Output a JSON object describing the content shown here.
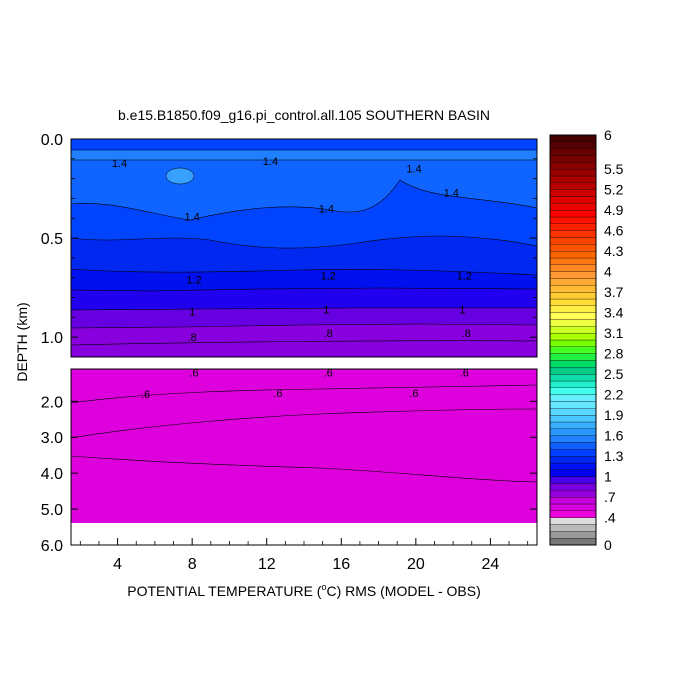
{
  "chart_data": {
    "type": "heatmap",
    "title": "b.e15.B1850.f09_g16.pi_control.all.105 SOUTHERN BASIN",
    "xlabel": "POTENTIAL TEMPERATURE (",
    "xlabel_sup": "o",
    "xlabel_end": "C) RMS (MODEL - OBS)",
    "ylabel": "DEPTH (km)",
    "x_ticks": [
      "4",
      "8",
      "12",
      "16",
      "20",
      "24"
    ],
    "x_tick_values": [
      4,
      8,
      12,
      16,
      20,
      24
    ],
    "xlim": [
      1.5,
      26.5
    ],
    "upper_panel": {
      "ylim": [
        0.0,
        1.1
      ],
      "y_ticks": [
        "0.0",
        "0.5",
        "1.0"
      ],
      "y_tick_values": [
        0.0,
        0.5,
        1.0
      ],
      "contour_labels": [
        {
          "text": "1.4",
          "x": 4.1,
          "y": 0.12
        },
        {
          "text": "1.4",
          "x": 12.2,
          "y": 0.11
        },
        {
          "text": "1.4",
          "x": 19.9,
          "y": 0.15
        },
        {
          "text": "1.4",
          "x": 21.9,
          "y": 0.27
        },
        {
          "text": "1.4",
          "x": 8.0,
          "y": 0.39
        },
        {
          "text": "1.4",
          "x": 15.2,
          "y": 0.35
        },
        {
          "text": "1.2",
          "x": 8.1,
          "y": 0.71
        },
        {
          "text": "1.2",
          "x": 15.3,
          "y": 0.69
        },
        {
          "text": "1.2",
          "x": 22.6,
          "y": 0.69
        },
        {
          "text": "1",
          "x": 8.0,
          "y": 0.87
        },
        {
          "text": "1",
          "x": 15.2,
          "y": 0.86
        },
        {
          "text": "1",
          "x": 22.5,
          "y": 0.86
        },
        {
          "text": ".8",
          "x": 8.0,
          "y": 1.0
        },
        {
          "text": ".8",
          "x": 15.3,
          "y": 0.98
        },
        {
          "text": ".8",
          "x": 22.7,
          "y": 0.98
        }
      ]
    },
    "lower_panel": {
      "ylim": [
        1.1,
        6.0
      ],
      "data_bottom": 5.35,
      "y_ticks": [
        "2.0",
        "3.0",
        "4.0",
        "5.0",
        "6.0"
      ],
      "y_tick_values": [
        2.0,
        3.0,
        4.0,
        5.0,
        6.0
      ],
      "contour_labels": [
        {
          "text": ".6",
          "x": 8.1,
          "y": 1.2
        },
        {
          "text": ".6",
          "x": 15.3,
          "y": 1.2
        },
        {
          "text": ".6",
          "x": 22.6,
          "y": 1.2
        },
        {
          "text": ".6",
          "x": 5.5,
          "y": 1.8
        },
        {
          "text": ".6",
          "x": 12.6,
          "y": 1.77
        },
        {
          "text": ".6",
          "x": 19.9,
          "y": 1.77
        }
      ]
    },
    "colorbar": {
      "labels": [
        "6",
        "5.5",
        "5.2",
        "4.9",
        "4.6",
        "4.3",
        "4",
        "3.7",
        "3.4",
        "3.1",
        "2.8",
        "2.5",
        "2.2",
        "1.9",
        "1.6",
        "1.3",
        "1",
        ".7",
        ".4",
        "0"
      ],
      "levels": [
        0,
        0.1,
        0.2,
        0.3,
        0.4,
        0.5,
        0.6,
        0.7,
        0.8,
        0.9,
        1.0,
        1.1,
        1.2,
        1.3,
        1.4,
        1.5,
        1.6,
        1.7,
        1.8,
        1.9,
        2.0,
        2.1,
        2.2,
        2.3,
        2.4,
        2.5,
        2.6,
        2.7,
        2.8,
        2.9,
        3.0,
        3.1,
        3.2,
        3.3,
        3.4,
        3.5,
        3.6,
        3.7,
        3.8,
        3.9,
        4.0,
        4.1,
        4.2,
        4.3,
        4.4,
        4.5,
        4.6,
        4.7,
        4.8,
        4.9,
        5.0,
        5.1,
        5.2,
        5.3,
        5.4,
        5.5,
        5.6,
        5.7,
        5.8,
        5.9,
        6.0
      ],
      "colors": [
        "#777777",
        "#999999",
        "#bbbbbb",
        "#dddddd",
        "#ee00dd",
        "#d800dd",
        "#c400dd",
        "#9600dd",
        "#7800e0",
        "#4600e6",
        "#0000ee",
        "#0010f4",
        "#0028f4",
        "#0040ff",
        "#1060ff",
        "#2080ff",
        "#2a98ff",
        "#38b0ff",
        "#48c8ff",
        "#58d8ff",
        "#68e8ff",
        "#66eeff",
        "#44ffee",
        "#22eecc",
        "#10ddaa",
        "#00cc88",
        "#00dd66",
        "#22ee44",
        "#44ff22",
        "#77ff00",
        "#aaff00",
        "#ccff22",
        "#eeff44",
        "#ffff55",
        "#ffee44",
        "#ffdd33",
        "#ffcc33",
        "#ffbb33",
        "#ffaa33",
        "#ff9933",
        "#ff8822",
        "#ff7711",
        "#ff6600",
        "#ff5500",
        "#ff4400",
        "#ff3300",
        "#ff2200",
        "#ff1100",
        "#ff0000",
        "#ee0000",
        "#dd0000",
        "#cc0000",
        "#bb0000",
        "#aa0000",
        "#990000",
        "#880000",
        "#770000",
        "#660000",
        "#550000",
        "#440000"
      ]
    }
  },
  "colors": {
    "magenta": "#dd00dd",
    "purple": "#8800dd",
    "blue": "#0000ee",
    "mid_blue": "#0044ff",
    "light_blue": "#2288ff"
  }
}
